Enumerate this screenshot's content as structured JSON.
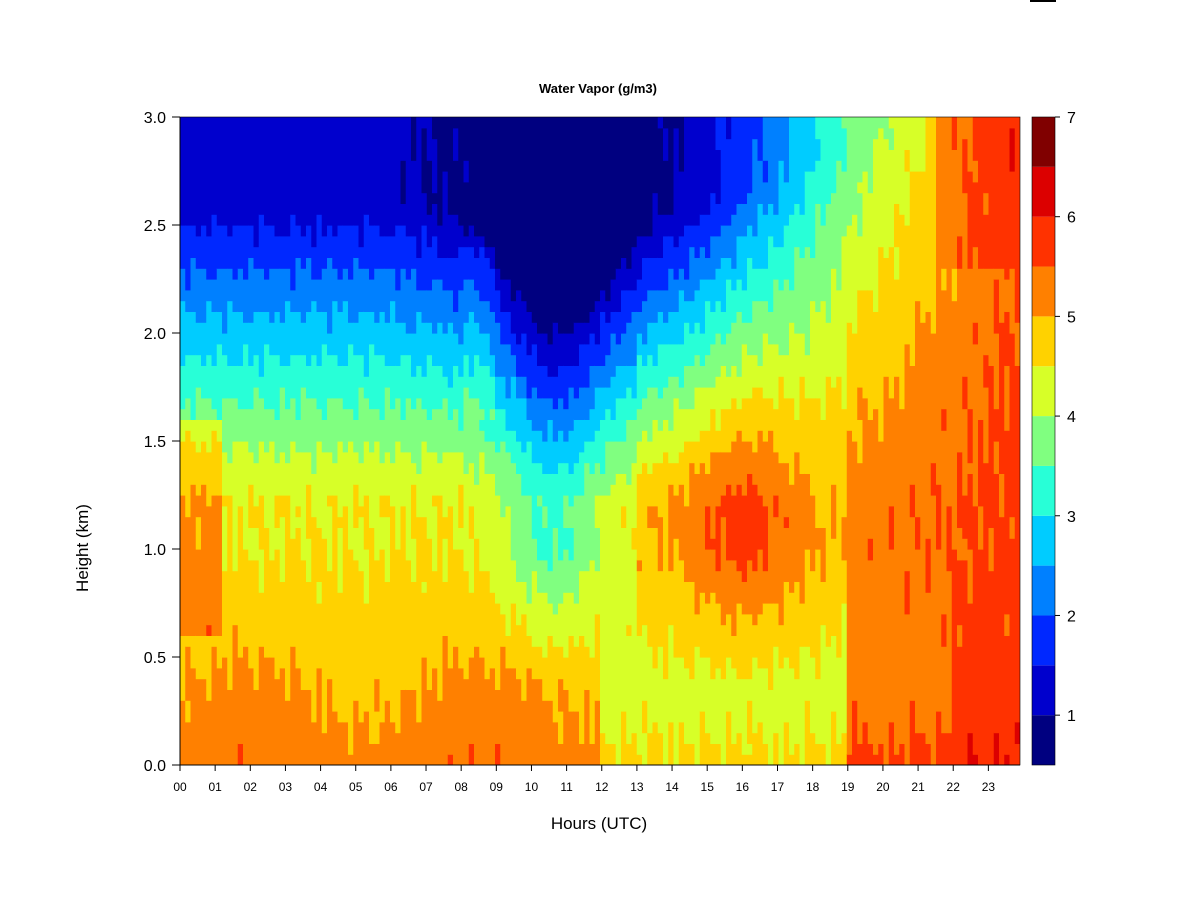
{
  "chart_data": {
    "type": "heatmap",
    "title": "Water Vapor (g/m3)",
    "xlabel": "Hours (UTC)",
    "ylabel": "Height (km)",
    "xlim": [
      0,
      23.9
    ],
    "ylim": [
      0.0,
      3.0
    ],
    "x_ticks": [
      "00",
      "01",
      "02",
      "03",
      "04",
      "05",
      "06",
      "07",
      "08",
      "09",
      "10",
      "11",
      "12",
      "13",
      "14",
      "15",
      "16",
      "17",
      "18",
      "19",
      "20",
      "21",
      "22",
      "23"
    ],
    "y_ticks": [
      "0.0",
      "0.5",
      "1.0",
      "1.5",
      "2.0",
      "2.5",
      "3.0"
    ],
    "colorbar": {
      "levels": [
        0.5,
        1,
        1.5,
        2,
        2.5,
        3,
        3.5,
        4,
        4.5,
        5,
        5.5,
        6,
        6.5,
        7
      ],
      "colors": [
        "#000080",
        "#0000cd",
        "#0028ff",
        "#0080ff",
        "#00ccff",
        "#28ffd7",
        "#80ff80",
        "#d7ff28",
        "#ffd200",
        "#ff8000",
        "#ff3200",
        "#dc0000",
        "#800000"
      ],
      "tick_labels": [
        "1",
        "2",
        "3",
        "4",
        "5",
        "6",
        "7"
      ],
      "tick_values": [
        1,
        2,
        3,
        4,
        5,
        6,
        7
      ]
    },
    "grid": false
  }
}
